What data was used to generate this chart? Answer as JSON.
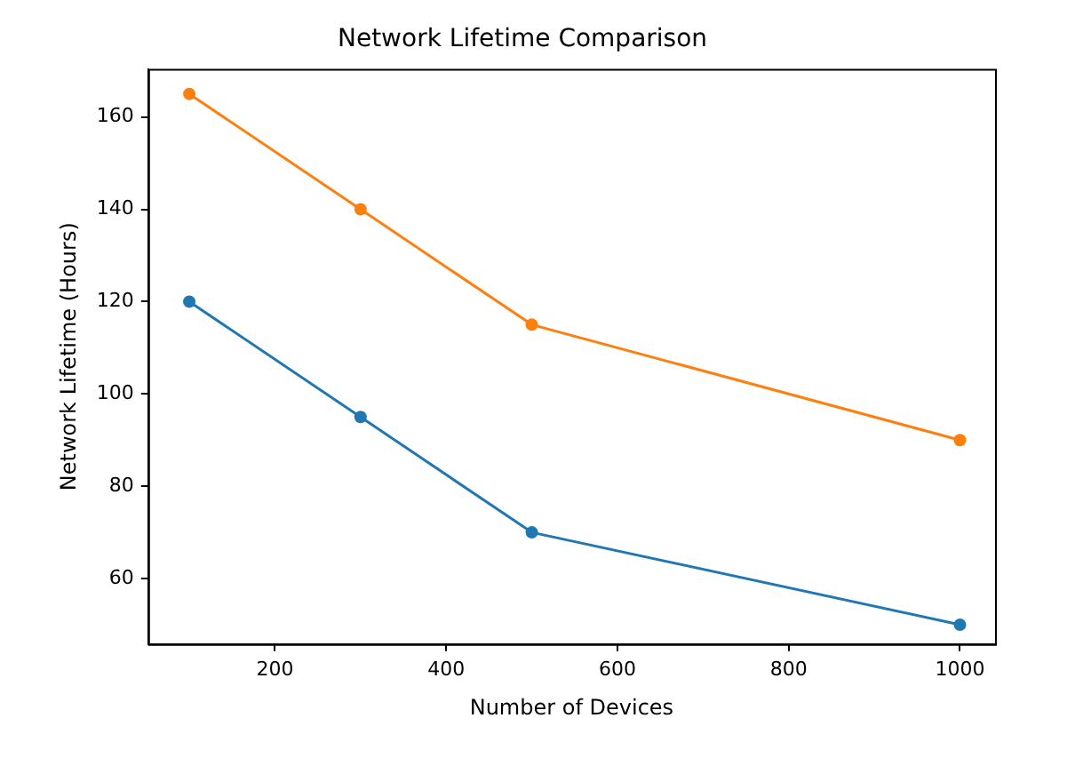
{
  "chart_data": {
    "type": "line",
    "title": "Network Lifetime Comparison",
    "xlabel": "Number of Devices",
    "ylabel": "Network Lifetime (Hours)",
    "x": [
      100,
      300,
      500,
      1000
    ],
    "series": [
      {
        "color": "#1f77b4",
        "values": [
          120,
          95,
          70,
          50
        ]
      },
      {
        "color": "#ff7f0e",
        "values": [
          165,
          140,
          115,
          90
        ]
      }
    ],
    "xlim": [
      52,
      1041
    ],
    "ylim": [
      45.8,
      170.4
    ],
    "xticks": [
      200,
      400,
      600,
      800,
      1000
    ],
    "yticks": [
      60,
      80,
      100,
      120,
      140,
      160
    ],
    "marker": "circle",
    "grid": false,
    "legend": false
  }
}
